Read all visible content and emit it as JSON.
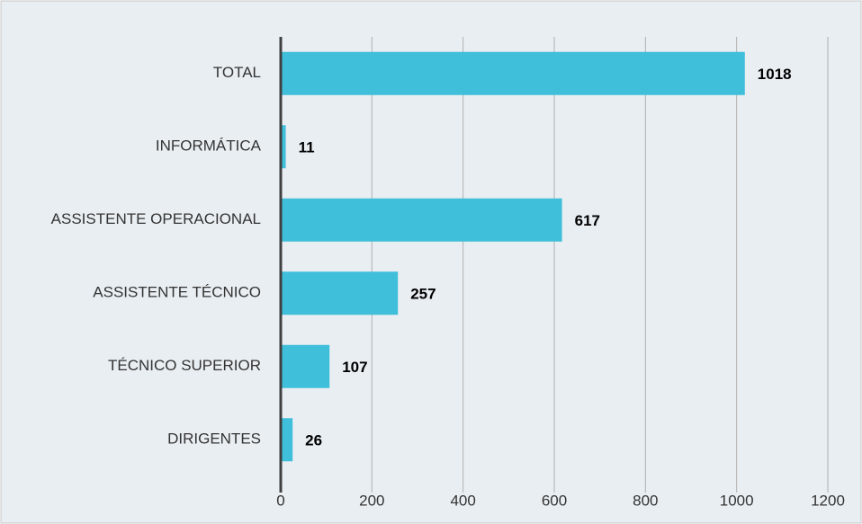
{
  "chart_data": {
    "type": "hbar",
    "categories": [
      "TOTAL",
      "INFORMÁTICA",
      "ASSISTENTE OPERACIONAL",
      "ASSISTENTE TÉCNICO",
      "TÉCNICO SUPERIOR",
      "DIRIGENTES"
    ],
    "values": [
      1018,
      11,
      617,
      257,
      107,
      26
    ],
    "color": "#3fbfda",
    "xlim": [
      0,
      1200
    ],
    "xticks": [
      0,
      200,
      400,
      600,
      800,
      1000,
      1200
    ],
    "grid": true
  }
}
